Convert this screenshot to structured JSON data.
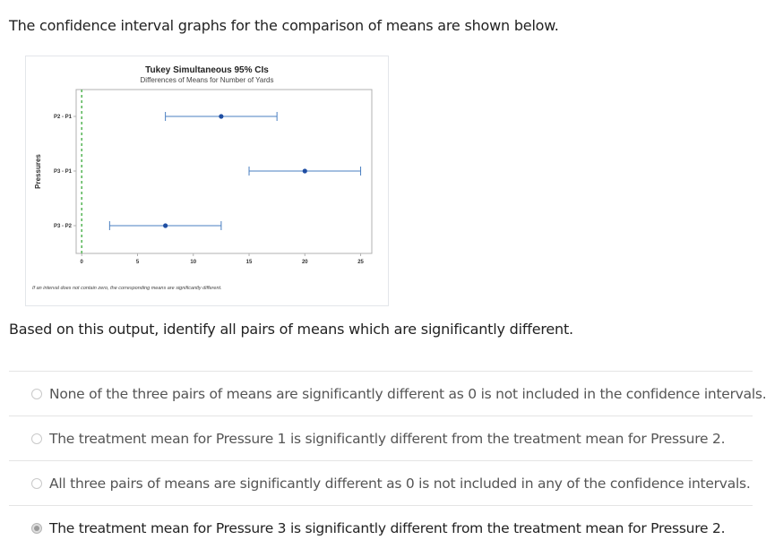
{
  "question_text": "The confidence interval graphs for the comparison of means are shown below.",
  "prompt_text": "Based on this output, identify all pairs of means which are significantly different.",
  "options": [
    {
      "label": "None of the three pairs of means are significantly different as 0 is not included in the confidence intervals.",
      "selected": false
    },
    {
      "label": "The treatment mean for Pressure 1 is significantly different from the treatment mean for Pressure 2.",
      "selected": false
    },
    {
      "label": "All three pairs of means are significantly different as 0 is not included in any of the confidence intervals.",
      "selected": false
    },
    {
      "label": "The treatment mean for Pressure 3 is significantly different from the treatment mean for Pressure 2.",
      "selected": true
    }
  ],
  "colors": {
    "interval": "#4a7fc1",
    "point": "#1f4ea3",
    "zero_line": "#5cb85c",
    "axis": "#b0b0b0"
  },
  "chart_data": {
    "type": "interval",
    "title": "Tukey Simultaneous 95% CIs",
    "subtitle": "Differences of Means for Number of Yards",
    "ylabel": "Pressures",
    "xlabel": "",
    "xlim": [
      -0.5,
      26
    ],
    "xticks": [
      0,
      5,
      10,
      15,
      20,
      25
    ],
    "reference_line": 0,
    "categories": [
      "P2 - P1",
      "P3 - P1",
      "P3 - P2"
    ],
    "estimates": [
      12.5,
      20.0,
      7.5
    ],
    "lower": [
      7.5,
      15.0,
      2.5
    ],
    "upper": [
      17.5,
      25.0,
      12.5
    ],
    "footnote": "If an interval does not contain zero, the corresponding means are significantly different."
  }
}
